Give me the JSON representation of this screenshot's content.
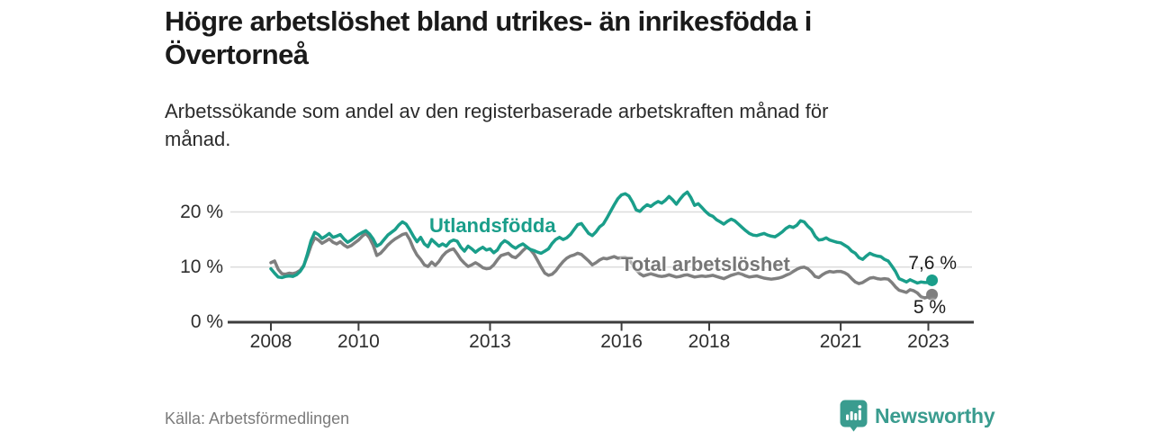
{
  "header": {
    "title_lines": [
      "Högre arbetslöshet bland utrikes- än inrikesfödda i",
      "Övertorneå"
    ],
    "subtitle_lines": [
      "Arbetssökande som andel av den registerbaserade arbetskraften månad för",
      "månad."
    ]
  },
  "footer": {
    "source": "Källa: Arbetsförmedlingen",
    "logo_text": "Newsworthy"
  },
  "colors": {
    "accent_teal": "#1a9e8a",
    "series_gray": "#7f7f7f",
    "grid": "#dcdcdc",
    "axis": "#3d3d3d",
    "logo_teal": "#3a9c8f",
    "end_label_text": "#1a1a1a"
  },
  "chart_data": {
    "type": "line",
    "unit": "%",
    "x_start": {
      "year": 2008,
      "month": 1
    },
    "x_end": {
      "year": 2023,
      "month": 2
    },
    "x_tick_years": [
      "2008",
      "2010",
      "2013",
      "2016",
      "2018",
      "2021",
      "2023"
    ],
    "y_ticks": [
      0,
      10,
      20
    ],
    "y_tick_labels": [
      "0 %",
      "10 %",
      "20 %"
    ],
    "ylim": [
      0,
      25
    ],
    "grid": true,
    "legend_position": "inline-labels",
    "series": [
      {
        "name": "Utlandsfödda",
        "color": "#1a9e8a",
        "end_label": "7,6 %",
        "end_value": 7.6,
        "values": [
          9.7,
          8.9,
          8.2,
          8.1,
          8.3,
          8.4,
          8.3,
          8.6,
          9.2,
          10.2,
          12.4,
          14.8,
          16.3,
          15.9,
          15.2,
          15.6,
          16.1,
          15.4,
          15.6,
          15.9,
          15.1,
          14.5,
          14.9,
          15.4,
          15.9,
          16.3,
          16.6,
          16.0,
          15.1,
          13.8,
          14.2,
          15.0,
          15.8,
          16.3,
          16.8,
          17.6,
          18.2,
          17.8,
          16.8,
          15.6,
          14.6,
          15.4,
          14.2,
          13.7,
          15.0,
          14.4,
          13.8,
          14.2,
          13.8,
          14.6,
          14.9,
          14.7,
          13.6,
          12.9,
          13.8,
          13.3,
          12.7,
          13.2,
          13.6,
          13.1,
          13.3,
          12.6,
          13.1,
          14.2,
          14.8,
          14.4,
          13.8,
          13.4,
          13.9,
          14.2,
          13.7,
          13.2,
          13.0,
          12.7,
          12.5,
          12.9,
          13.3,
          14.3,
          15.0,
          15.4,
          15.0,
          15.3,
          15.9,
          16.8,
          17.7,
          17.9,
          17.0,
          16.1,
          15.7,
          16.4,
          17.3,
          17.8,
          18.9,
          20.1,
          21.3,
          22.4,
          23.1,
          23.3,
          22.9,
          21.8,
          20.4,
          20.1,
          20.8,
          21.3,
          21.0,
          21.5,
          21.9,
          21.6,
          22.1,
          22.8,
          22.2,
          21.4,
          22.3,
          23.1,
          23.6,
          22.6,
          21.2,
          21.5,
          20.8,
          20.1,
          19.5,
          19.2,
          18.6,
          18.2,
          17.8,
          18.3,
          18.7,
          18.4,
          17.8,
          17.2,
          16.6,
          16.1,
          15.8,
          15.7,
          15.9,
          16.1,
          15.8,
          15.6,
          15.5,
          15.9,
          16.4,
          17.0,
          17.4,
          17.2,
          17.6,
          18.4,
          18.2,
          17.4,
          16.8,
          15.6,
          14.9,
          15.0,
          15.3,
          14.9,
          14.7,
          14.5,
          14.4,
          14.0,
          13.6,
          12.9,
          12.5,
          11.7,
          11.4,
          12.0,
          12.5,
          12.2,
          12.0,
          11.9,
          11.4,
          11.1,
          10.2,
          9.2,
          7.9,
          7.6,
          7.3,
          7.7,
          7.4,
          7.1,
          7.3,
          7.2,
          7.2,
          7.6
        ]
      },
      {
        "name": "Total arbetslöshet",
        "color": "#7f7f7f",
        "end_label": "5 %",
        "end_value": 5.0,
        "values": [
          10.8,
          11.1,
          9.6,
          8.8,
          8.7,
          8.9,
          8.8,
          9.0,
          9.4,
          10.3,
          12.0,
          13.9,
          15.3,
          14.9,
          14.3,
          14.7,
          15.1,
          14.5,
          14.2,
          14.6,
          14.0,
          13.6,
          13.9,
          14.4,
          14.9,
          15.6,
          16.1,
          15.3,
          14.0,
          12.1,
          12.5,
          13.2,
          14.0,
          14.6,
          15.1,
          15.5,
          15.9,
          16.1,
          15.0,
          13.4,
          12.2,
          11.4,
          10.4,
          10.1,
          10.9,
          10.3,
          11.0,
          12.0,
          12.7,
          13.1,
          13.3,
          12.4,
          11.4,
          10.7,
          10.1,
          10.4,
          10.8,
          10.4,
          9.9,
          9.7,
          9.8,
          10.4,
          11.3,
          12.1,
          12.3,
          12.5,
          11.9,
          11.7,
          12.3,
          13.0,
          13.6,
          13.2,
          12.4,
          11.2,
          10.0,
          8.9,
          8.5,
          8.7,
          9.3,
          10.2,
          11.0,
          11.6,
          12.0,
          12.2,
          12.5,
          12.3,
          11.7,
          11.1,
          10.4,
          10.8,
          11.3,
          11.6,
          11.5,
          11.7,
          11.9,
          11.6,
          11.7,
          11.8,
          11.4,
          10.5,
          9.5,
          8.8,
          8.4,
          8.6,
          8.8,
          8.6,
          8.4,
          8.3,
          8.4,
          8.6,
          8.4,
          8.2,
          8.3,
          8.5,
          8.6,
          8.4,
          8.2,
          8.3,
          8.4,
          8.3,
          8.4,
          8.5,
          8.3,
          8.1,
          7.9,
          8.2,
          8.5,
          8.7,
          8.9,
          8.7,
          8.4,
          8.2,
          8.3,
          8.4,
          8.2,
          8.0,
          7.9,
          7.8,
          7.9,
          8.0,
          8.2,
          8.5,
          8.8,
          9.2,
          9.6,
          9.9,
          10.0,
          9.7,
          9.1,
          8.3,
          8.1,
          8.6,
          9.0,
          9.2,
          9.1,
          9.2,
          9.2,
          9.0,
          8.6,
          7.9,
          7.3,
          7.0,
          7.2,
          7.6,
          8.0,
          8.1,
          7.9,
          7.8,
          7.9,
          7.8,
          7.2,
          6.4,
          5.8,
          5.6,
          5.4,
          5.9,
          5.7,
          5.3,
          4.6,
          4.4,
          4.6,
          5.0
        ]
      }
    ]
  }
}
